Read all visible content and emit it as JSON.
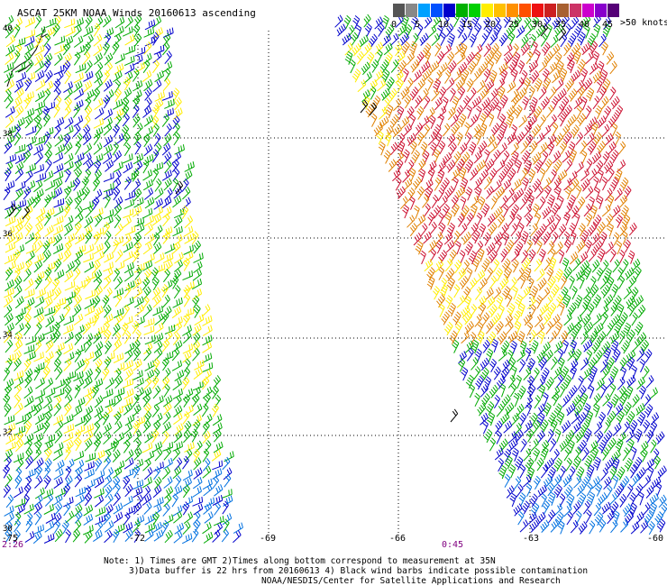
{
  "title": "ASCAT 25KM NOAA Winds 20160613 ascending",
  "legend": {
    "colors": [
      "#555555",
      "#888888",
      "#00a0ff",
      "#0050ff",
      "#0000cc",
      "#00b000",
      "#00d000",
      "#ffee00",
      "#ffc000",
      "#ff9000",
      "#ff5000",
      "#ee1111",
      "#cc2020",
      "#a86030",
      "#cc3366",
      "#cc00cc",
      "#8800cc",
      "#550077"
    ],
    "ticks": [
      "0",
      "5",
      "10",
      "15",
      "20",
      "25",
      "30",
      "35",
      "40",
      "45"
    ],
    "unit": ">50 knots"
  },
  "lat_labels": [
    "40",
    "38",
    "36",
    "34",
    "32",
    "30"
  ],
  "lon_labels": [
    "-75",
    "-72",
    "-69",
    "-66",
    "-63",
    "-60"
  ],
  "times": {
    "left": "2:26",
    "right": "0:45"
  },
  "notes": [
    "Note: 1) Times are GMT 2)Times along bottom correspond to measurement at 35N",
    "3)Data buffer is 22 hrs from 20160613 4) Black wind barbs indicate possible contamination",
    "NOAA/NESDIS/Center for Satellite Applications and Research"
  ],
  "colors": {
    "grid": "#000000",
    "coast": "#000000",
    "lat_time": "#800080",
    "blue": "#0000cc",
    "lightblue": "#0070e0",
    "green": "#00aa00",
    "yellow": "#ffee00",
    "orange": "#e08000",
    "red": "#cc1030",
    "black": "#000000"
  }
}
